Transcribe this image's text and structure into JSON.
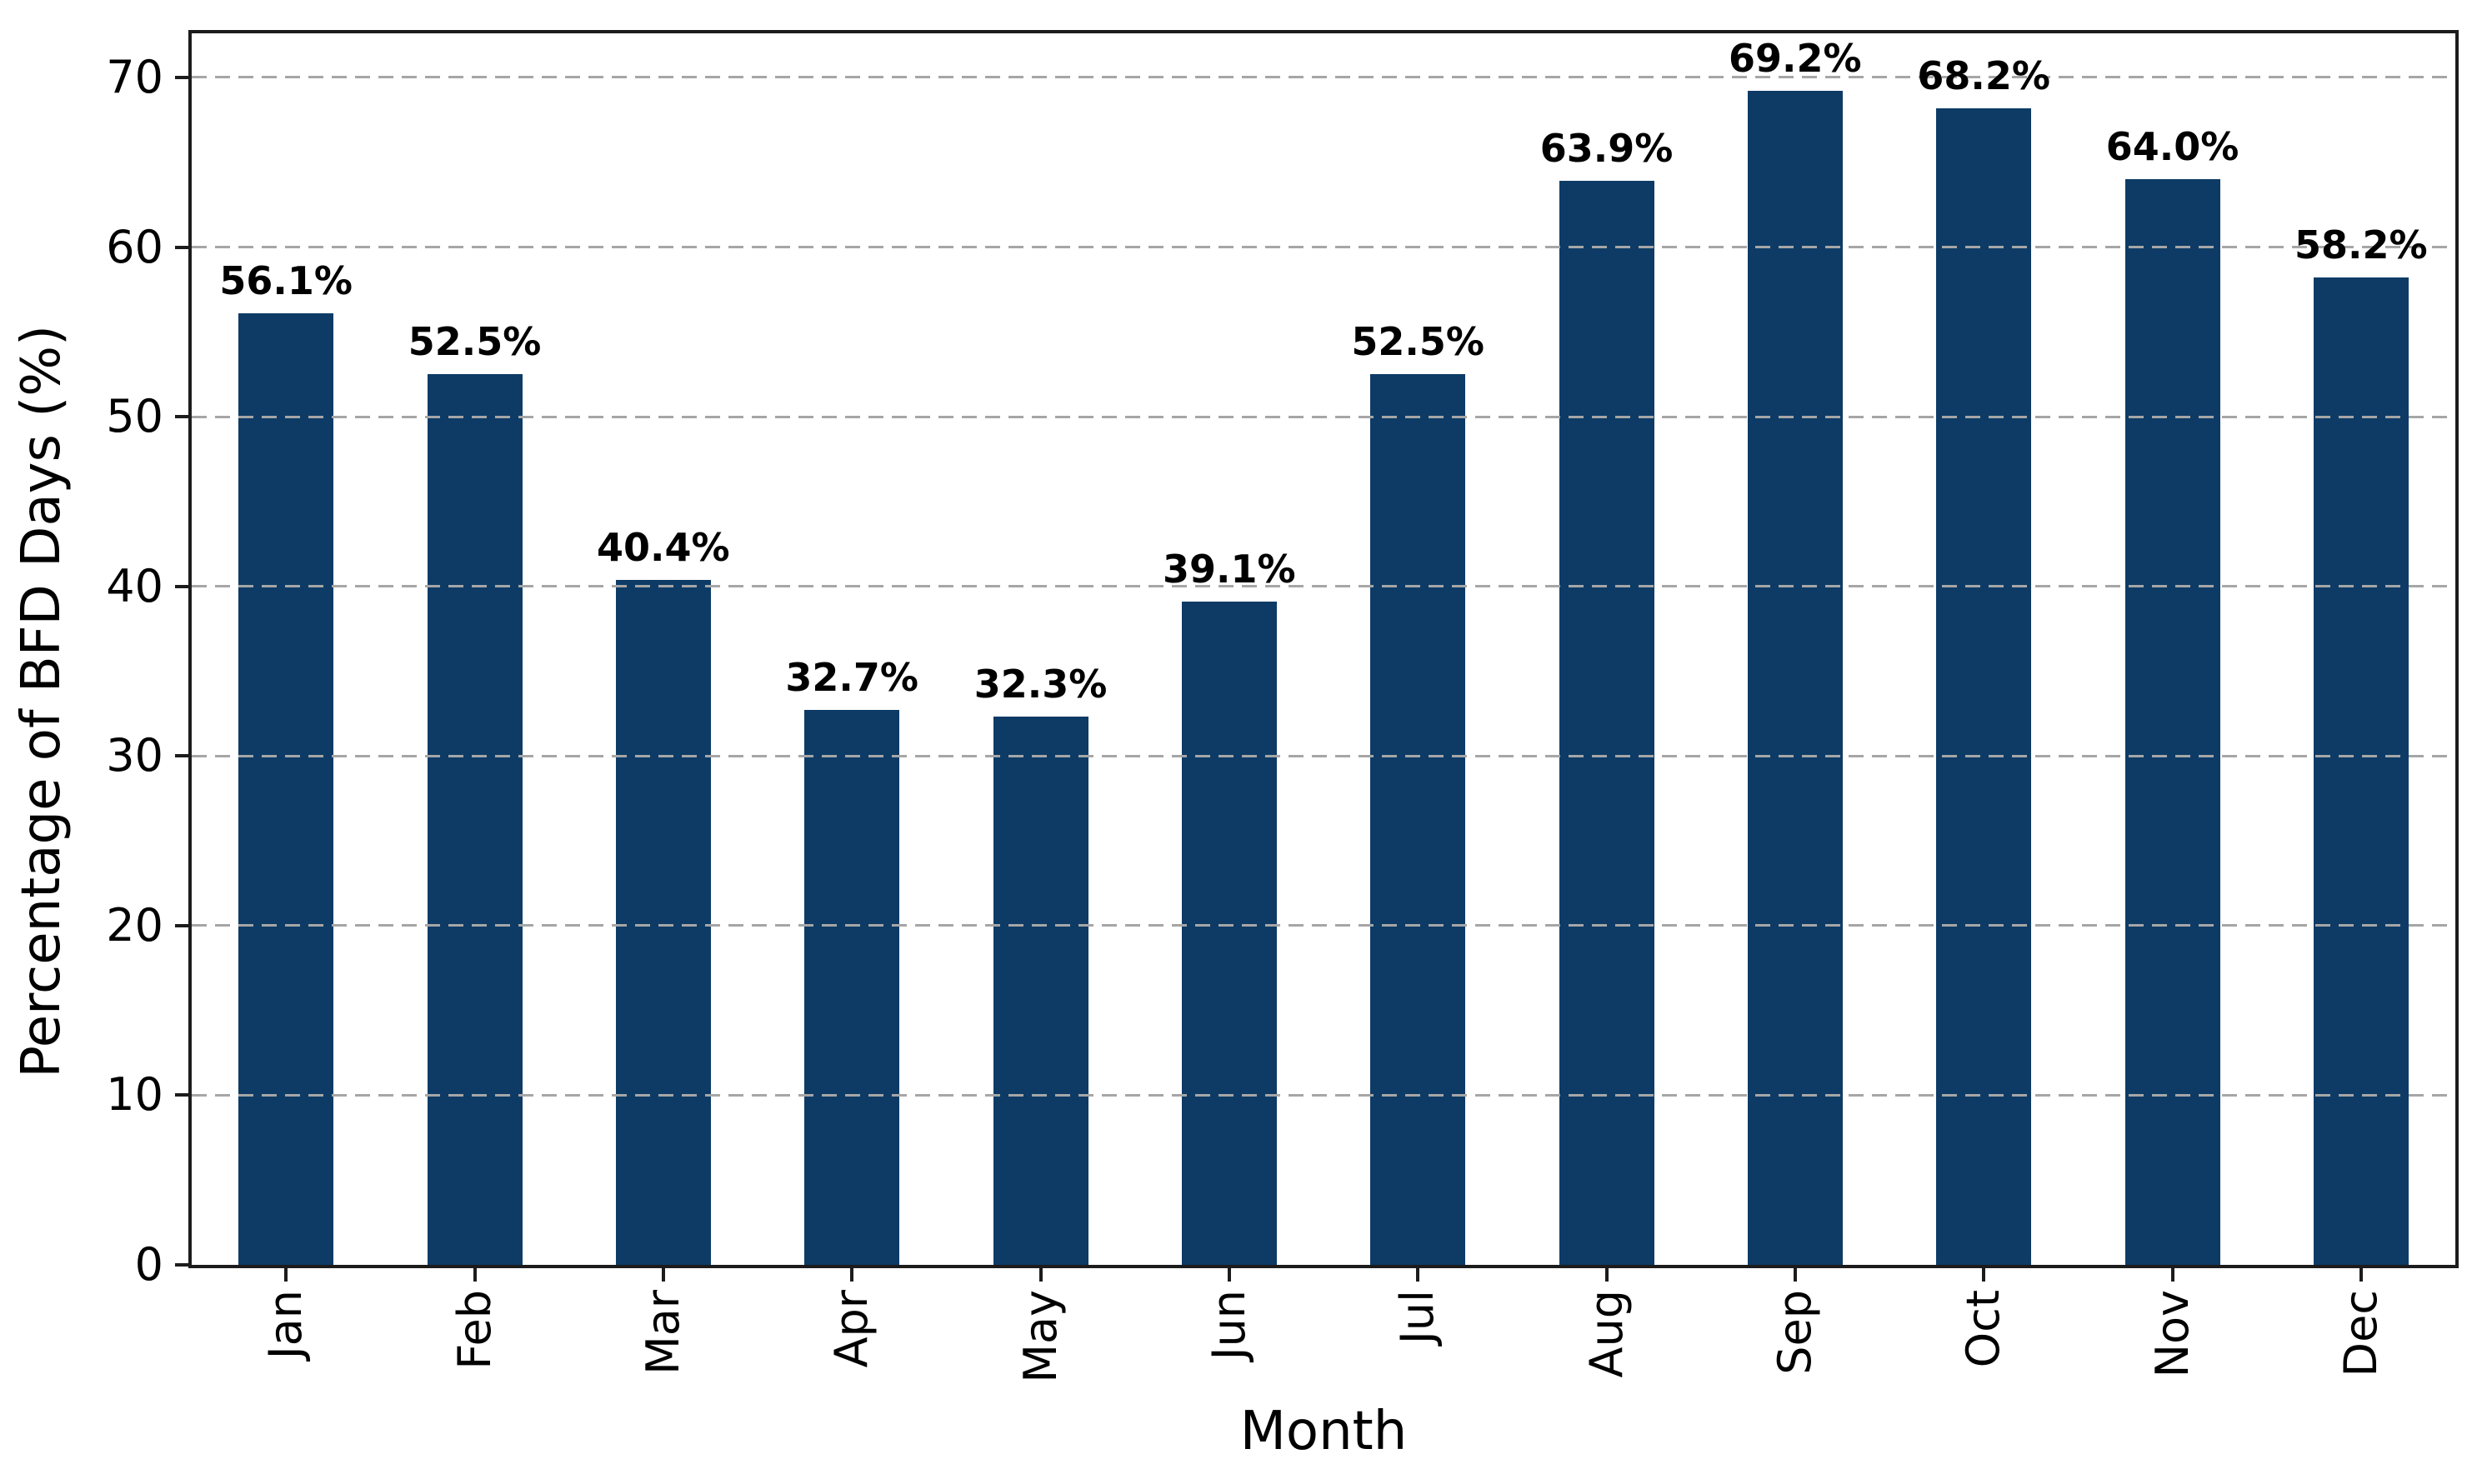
{
  "chart_data": {
    "type": "bar",
    "title": "",
    "xlabel": "Month",
    "ylabel": "Percentage of BFD Days (%)",
    "categories": [
      "Jan",
      "Feb",
      "Mar",
      "Apr",
      "May",
      "Jun",
      "Jul",
      "Aug",
      "Sep",
      "Oct",
      "Nov",
      "Dec"
    ],
    "values": [
      56.1,
      52.5,
      40.4,
      32.7,
      32.3,
      39.1,
      52.5,
      63.9,
      69.2,
      68.2,
      64.0,
      58.2
    ],
    "bar_labels": [
      "56.1%",
      "52.5%",
      "40.4%",
      "32.7%",
      "32.3%",
      "39.1%",
      "52.5%",
      "63.9%",
      "69.2%",
      "68.2%",
      "64.0%",
      "58.2%"
    ],
    "yticks": [
      0,
      10,
      20,
      30,
      40,
      50,
      60,
      70
    ],
    "ytick_labels": [
      "0",
      "10",
      "20",
      "30",
      "40",
      "50",
      "60",
      "70"
    ],
    "ylim": [
      0,
      72.6
    ],
    "grid": "horizontal dashed gridlines drawn on top of bars",
    "legend": "none",
    "colors": {
      "bar": "#0d3b66",
      "grid": "#a6a6a6",
      "spine": "#1c1c1c",
      "text": "#000000",
      "background": "#ffffff"
    }
  }
}
